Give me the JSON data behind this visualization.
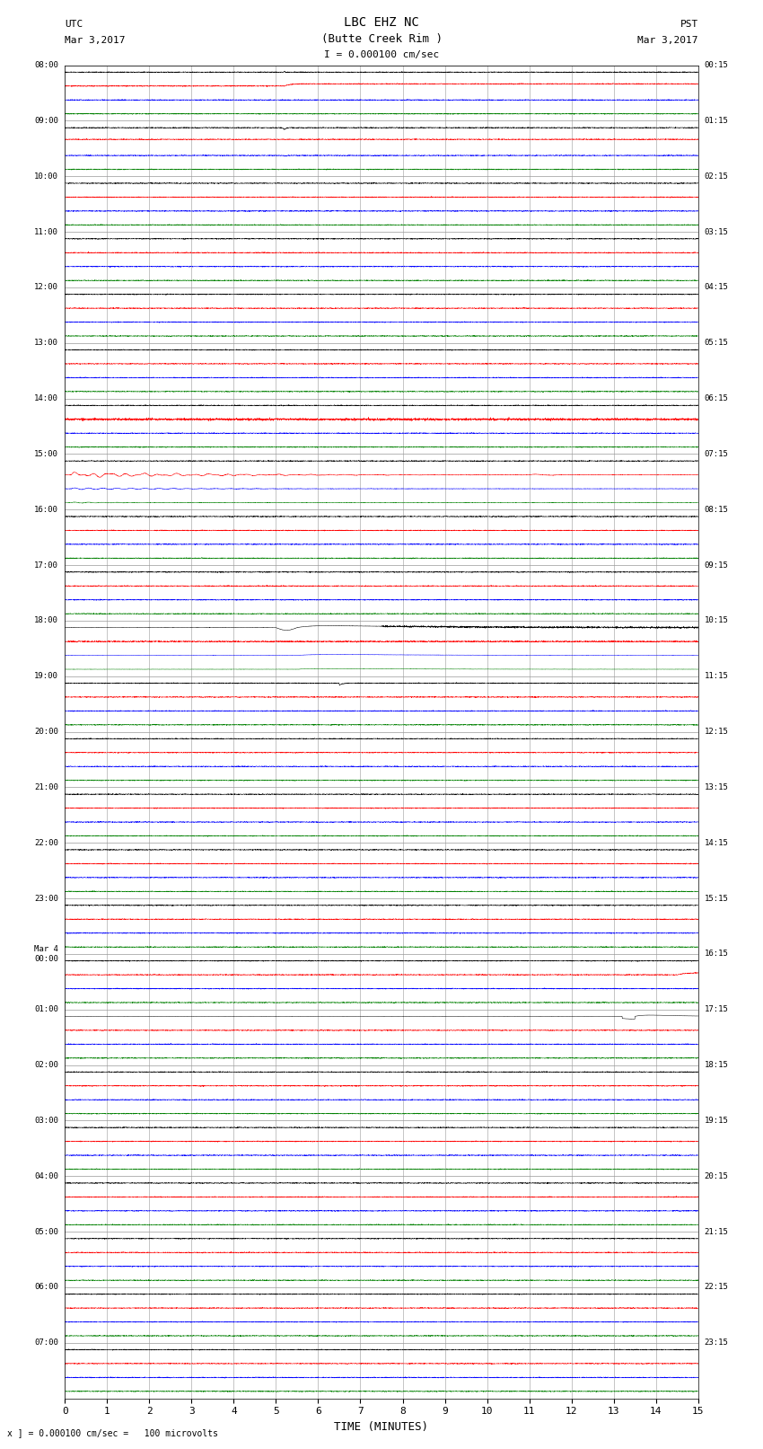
{
  "title_line1": "LBC EHZ NC",
  "title_line2": "(Butte Creek Rim )",
  "scale_text": "I = 0.000100 cm/sec",
  "utc_label": "UTC",
  "utc_date": "Mar 3,2017",
  "pst_label": "PST",
  "pst_date": "Mar 3,2017",
  "xlabel": "TIME (MINUTES)",
  "footer": "x ] = 0.000100 cm/sec =   100 microvolts",
  "xlim": [
    0,
    15
  ],
  "xticks": [
    0,
    1,
    2,
    3,
    4,
    5,
    6,
    7,
    8,
    9,
    10,
    11,
    12,
    13,
    14,
    15
  ],
  "bg_color": "#ffffff",
  "grid_color": "#999999",
  "utc_hour_labels": [
    "08:00",
    "09:00",
    "10:00",
    "11:00",
    "12:00",
    "13:00",
    "14:00",
    "15:00",
    "16:00",
    "17:00",
    "18:00",
    "19:00",
    "20:00",
    "21:00",
    "22:00",
    "23:00",
    "Mar 4\n00:00",
    "01:00",
    "02:00",
    "03:00",
    "04:00",
    "05:00",
    "06:00",
    "07:00"
  ],
  "pst_hour_labels": [
    "00:15",
    "01:15",
    "02:15",
    "03:15",
    "04:15",
    "05:15",
    "06:15",
    "07:15",
    "08:15",
    "09:15",
    "10:15",
    "11:15",
    "12:15",
    "13:15",
    "14:15",
    "15:15",
    "16:15",
    "17:15",
    "18:15",
    "19:15",
    "20:15",
    "21:15",
    "22:15",
    "23:15"
  ],
  "trace_colors": [
    "black",
    "red",
    "blue",
    "green"
  ],
  "num_groups": 24,
  "traces_per_group": 4,
  "noise_amp": 0.035,
  "row_scale": 0.42
}
